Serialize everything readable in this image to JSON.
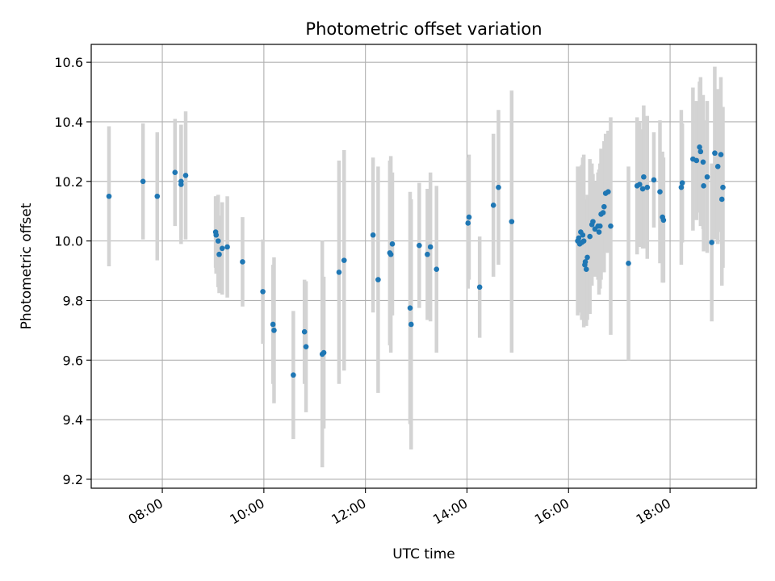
{
  "chart_data": {
    "type": "scatter",
    "title": "Photometric offset variation",
    "xlabel": "UTC time",
    "ylabel": "Photometric offset",
    "grid": true,
    "x_unit": "hours UTC",
    "xlim": [
      6.6,
      19.7
    ],
    "ylim": [
      9.17,
      10.66
    ],
    "x_ticks": [
      {
        "value": 8,
        "label": "08:00"
      },
      {
        "value": 10,
        "label": "10:00"
      },
      {
        "value": 12,
        "label": "12:00"
      },
      {
        "value": 14,
        "label": "14:00"
      },
      {
        "value": 16,
        "label": "16:00"
      },
      {
        "value": 18,
        "label": "18:00"
      }
    ],
    "y_ticks": [
      {
        "value": 9.2,
        "label": "9.2"
      },
      {
        "value": 9.4,
        "label": "9.4"
      },
      {
        "value": 9.6,
        "label": "9.6"
      },
      {
        "value": 9.8,
        "label": "9.8"
      },
      {
        "value": 10.0,
        "label": "10.0"
      },
      {
        "value": 10.2,
        "label": "10.2"
      },
      {
        "value": 10.4,
        "label": "10.4"
      },
      {
        "value": 10.6,
        "label": "10.6"
      }
    ],
    "point_color": "#1f77b4",
    "errorbar_color": "#d3d3d3",
    "points": [
      [
        6.95,
        10.15,
        0.235
      ],
      [
        7.62,
        10.2,
        0.195
      ],
      [
        7.9,
        10.15,
        0.215
      ],
      [
        8.25,
        10.23,
        0.18
      ],
      [
        8.37,
        10.2,
        0.19
      ],
      [
        8.37,
        10.19,
        0.2
      ],
      [
        8.46,
        10.22,
        0.215
      ],
      [
        9.05,
        10.03,
        0.12
      ],
      [
        9.06,
        10.02,
        0.13
      ],
      [
        9.1,
        10.0,
        0.155
      ],
      [
        9.12,
        9.955,
        0.13
      ],
      [
        9.18,
        9.975,
        0.155
      ],
      [
        9.28,
        9.98,
        0.17
      ],
      [
        9.58,
        9.93,
        0.15
      ],
      [
        9.98,
        9.83,
        0.175
      ],
      [
        10.18,
        9.72,
        0.2
      ],
      [
        10.2,
        9.7,
        0.245
      ],
      [
        10.58,
        9.55,
        0.215
      ],
      [
        10.8,
        9.695,
        0.175
      ],
      [
        10.83,
        9.645,
        0.22
      ],
      [
        11.15,
        9.62,
        0.38
      ],
      [
        11.18,
        9.625,
        0.255
      ],
      [
        11.48,
        9.895,
        0.375
      ],
      [
        11.58,
        9.935,
        0.37
      ],
      [
        12.15,
        10.02,
        0.26
      ],
      [
        12.25,
        9.87,
        0.38
      ],
      [
        12.48,
        9.96,
        0.31
      ],
      [
        12.5,
        9.955,
        0.33
      ],
      [
        12.53,
        9.99,
        0.24
      ],
      [
        12.88,
        9.775,
        0.39
      ],
      [
        12.9,
        9.72,
        0.42
      ],
      [
        13.06,
        9.985,
        0.21
      ],
      [
        13.22,
        9.955,
        0.22
      ],
      [
        13.28,
        9.98,
        0.25
      ],
      [
        13.4,
        9.905,
        0.28
      ],
      [
        14.02,
        10.06,
        0.22
      ],
      [
        14.04,
        10.08,
        0.21
      ],
      [
        14.25,
        9.845,
        0.17
      ],
      [
        14.52,
        10.12,
        0.24
      ],
      [
        14.62,
        10.18,
        0.26
      ],
      [
        14.88,
        10.065,
        0.44
      ],
      [
        16.18,
        10.0,
        0.25
      ],
      [
        16.2,
        10.01,
        0.21
      ],
      [
        16.22,
        9.99,
        0.23
      ],
      [
        16.24,
        10.03,
        0.22
      ],
      [
        16.26,
        9.995,
        0.26
      ],
      [
        16.28,
        10.02,
        0.26
      ],
      [
        16.3,
        10.0,
        0.29
      ],
      [
        16.32,
        9.92,
        0.2
      ],
      [
        16.33,
        9.93,
        0.21
      ],
      [
        16.35,
        9.905,
        0.19
      ],
      [
        16.37,
        9.945,
        0.21
      ],
      [
        16.42,
        10.015,
        0.26
      ],
      [
        16.46,
        10.055,
        0.205
      ],
      [
        16.48,
        10.065,
        0.16
      ],
      [
        16.52,
        10.04,
        0.16
      ],
      [
        16.58,
        10.05,
        0.18
      ],
      [
        16.62,
        10.05,
        0.21
      ],
      [
        16.6,
        10.03,
        0.21
      ],
      [
        16.64,
        10.09,
        0.22
      ],
      [
        16.68,
        10.095,
        0.2
      ],
      [
        16.7,
        10.115,
        0.22
      ],
      [
        16.73,
        10.16,
        0.2
      ],
      [
        16.78,
        10.165,
        0.205
      ],
      [
        16.83,
        10.05,
        0.365
      ],
      [
        17.18,
        9.925,
        0.325
      ],
      [
        17.35,
        10.185,
        0.23
      ],
      [
        17.4,
        10.19,
        0.21
      ],
      [
        17.46,
        10.175,
        0.2
      ],
      [
        17.48,
        10.215,
        0.24
      ],
      [
        17.55,
        10.18,
        0.24
      ],
      [
        17.68,
        10.205,
        0.16
      ],
      [
        17.8,
        10.165,
        0.24
      ],
      [
        17.85,
        10.08,
        0.22
      ],
      [
        17.87,
        10.07,
        0.21
      ],
      [
        18.22,
        10.18,
        0.26
      ],
      [
        18.24,
        10.195,
        0.2
      ],
      [
        18.45,
        10.275,
        0.24
      ],
      [
        18.52,
        10.27,
        0.2
      ],
      [
        18.58,
        10.315,
        0.22
      ],
      [
        18.6,
        10.3,
        0.25
      ],
      [
        18.65,
        10.265,
        0.225
      ],
      [
        18.66,
        10.185,
        0.22
      ],
      [
        18.73,
        10.215,
        0.255
      ],
      [
        18.82,
        9.995,
        0.265
      ],
      [
        18.88,
        10.295,
        0.29
      ],
      [
        18.94,
        10.25,
        0.26
      ],
      [
        19.0,
        10.29,
        0.26
      ],
      [
        19.02,
        10.14,
        0.29
      ],
      [
        19.04,
        10.18,
        0.27
      ]
    ]
  }
}
